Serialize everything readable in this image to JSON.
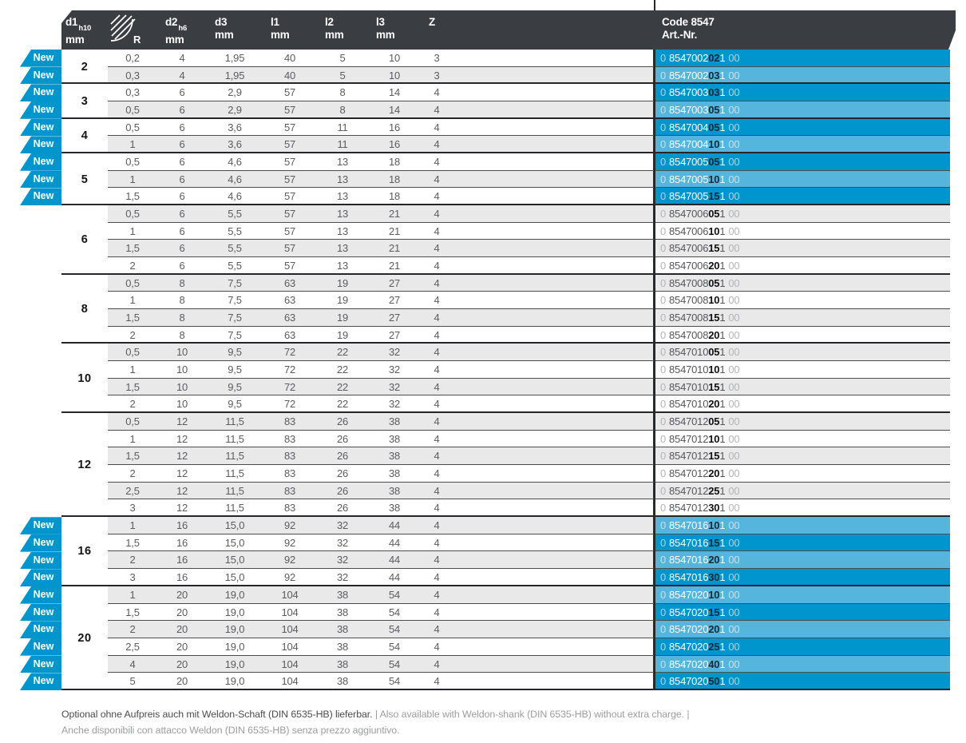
{
  "badge_label": "New",
  "header": {
    "columns": [
      {
        "main": "d1",
        "sub": "h10",
        "unit": "mm"
      },
      {
        "label": "R",
        "icon": "corner-radius-icon"
      },
      {
        "main": "d2",
        "sub": "h6",
        "unit": "mm"
      },
      {
        "main": "d3",
        "unit": "mm"
      },
      {
        "main": "l1",
        "unit": "mm"
      },
      {
        "main": "l2",
        "unit": "mm"
      },
      {
        "main": "l3",
        "unit": "mm"
      },
      {
        "main": "Z"
      }
    ],
    "art": {
      "line1": "Code 8547",
      "line2": "Art.-Nr."
    }
  },
  "groups": [
    {
      "d1": "2",
      "rows": [
        {
          "r": "0,2",
          "d2": "4",
          "d3": "1,95",
          "l1": "40",
          "l2": "5",
          "l3": "10",
          "z": "3",
          "new": true,
          "code": [
            "0",
            "8547002",
            "02",
            "1",
            "00"
          ]
        },
        {
          "r": "0,3",
          "d2": "4",
          "d3": "1,95",
          "l1": "40",
          "l2": "5",
          "l3": "10",
          "z": "3",
          "new": true,
          "code": [
            "0",
            "8547002",
            "03",
            "1",
            "00"
          ]
        }
      ]
    },
    {
      "d1": "3",
      "rows": [
        {
          "r": "0,3",
          "d2": "6",
          "d3": "2,9",
          "l1": "57",
          "l2": "8",
          "l3": "14",
          "z": "4",
          "new": true,
          "code": [
            "0",
            "8547003",
            "03",
            "1",
            "00"
          ]
        },
        {
          "r": "0,5",
          "d2": "6",
          "d3": "2,9",
          "l1": "57",
          "l2": "8",
          "l3": "14",
          "z": "4",
          "new": true,
          "code": [
            "0",
            "8547003",
            "05",
            "1",
            "00"
          ]
        }
      ]
    },
    {
      "d1": "4",
      "rows": [
        {
          "r": "0,5",
          "d2": "6",
          "d3": "3,6",
          "l1": "57",
          "l2": "11",
          "l3": "16",
          "z": "4",
          "new": true,
          "code": [
            "0",
            "8547004",
            "05",
            "1",
            "00"
          ]
        },
        {
          "r": "1",
          "d2": "6",
          "d3": "3,6",
          "l1": "57",
          "l2": "11",
          "l3": "16",
          "z": "4",
          "new": true,
          "code": [
            "0",
            "8547004",
            "10",
            "1",
            "00"
          ]
        }
      ]
    },
    {
      "d1": "5",
      "rows": [
        {
          "r": "0,5",
          "d2": "6",
          "d3": "4,6",
          "l1": "57",
          "l2": "13",
          "l3": "18",
          "z": "4",
          "new": true,
          "code": [
            "0",
            "8547005",
            "05",
            "1",
            "00"
          ]
        },
        {
          "r": "1",
          "d2": "6",
          "d3": "4,6",
          "l1": "57",
          "l2": "13",
          "l3": "18",
          "z": "4",
          "new": true,
          "code": [
            "0",
            "8547005",
            "10",
            "1",
            "00"
          ]
        },
        {
          "r": "1,5",
          "d2": "6",
          "d3": "4,6",
          "l1": "57",
          "l2": "13",
          "l3": "18",
          "z": "4",
          "new": true,
          "code": [
            "0",
            "8547005",
            "15",
            "1",
            "00"
          ]
        }
      ]
    },
    {
      "d1": "6",
      "rows": [
        {
          "r": "0,5",
          "d2": "6",
          "d3": "5,5",
          "l1": "57",
          "l2": "13",
          "l3": "21",
          "z": "4",
          "new": false,
          "code": [
            "0",
            "8547006",
            "05",
            "1",
            "00"
          ]
        },
        {
          "r": "1",
          "d2": "6",
          "d3": "5,5",
          "l1": "57",
          "l2": "13",
          "l3": "21",
          "z": "4",
          "new": false,
          "code": [
            "0",
            "8547006",
            "10",
            "1",
            "00"
          ]
        },
        {
          "r": "1,5",
          "d2": "6",
          "d3": "5,5",
          "l1": "57",
          "l2": "13",
          "l3": "21",
          "z": "4",
          "new": false,
          "code": [
            "0",
            "8547006",
            "15",
            "1",
            "00"
          ]
        },
        {
          "r": "2",
          "d2": "6",
          "d3": "5,5",
          "l1": "57",
          "l2": "13",
          "l3": "21",
          "z": "4",
          "new": false,
          "code": [
            "0",
            "8547006",
            "20",
            "1",
            "00"
          ]
        }
      ]
    },
    {
      "d1": "8",
      "rows": [
        {
          "r": "0,5",
          "d2": "8",
          "d3": "7,5",
          "l1": "63",
          "l2": "19",
          "l3": "27",
          "z": "4",
          "new": false,
          "code": [
            "0",
            "8547008",
            "05",
            "1",
            "00"
          ]
        },
        {
          "r": "1",
          "d2": "8",
          "d3": "7,5",
          "l1": "63",
          "l2": "19",
          "l3": "27",
          "z": "4",
          "new": false,
          "code": [
            "0",
            "8547008",
            "10",
            "1",
            "00"
          ]
        },
        {
          "r": "1,5",
          "d2": "8",
          "d3": "7,5",
          "l1": "63",
          "l2": "19",
          "l3": "27",
          "z": "4",
          "new": false,
          "code": [
            "0",
            "8547008",
            "15",
            "1",
            "00"
          ]
        },
        {
          "r": "2",
          "d2": "8",
          "d3": "7,5",
          "l1": "63",
          "l2": "19",
          "l3": "27",
          "z": "4",
          "new": false,
          "code": [
            "0",
            "8547008",
            "20",
            "1",
            "00"
          ]
        }
      ]
    },
    {
      "d1": "10",
      "rows": [
        {
          "r": "0,5",
          "d2": "10",
          "d3": "9,5",
          "l1": "72",
          "l2": "22",
          "l3": "32",
          "z": "4",
          "new": false,
          "code": [
            "0",
            "8547010",
            "05",
            "1",
            "00"
          ]
        },
        {
          "r": "1",
          "d2": "10",
          "d3": "9,5",
          "l1": "72",
          "l2": "22",
          "l3": "32",
          "z": "4",
          "new": false,
          "code": [
            "0",
            "8547010",
            "10",
            "1",
            "00"
          ]
        },
        {
          "r": "1,5",
          "d2": "10",
          "d3": "9,5",
          "l1": "72",
          "l2": "22",
          "l3": "32",
          "z": "4",
          "new": false,
          "code": [
            "0",
            "8547010",
            "15",
            "1",
            "00"
          ]
        },
        {
          "r": "2",
          "d2": "10",
          "d3": "9,5",
          "l1": "72",
          "l2": "22",
          "l3": "32",
          "z": "4",
          "new": false,
          "code": [
            "0",
            "8547010",
            "20",
            "1",
            "00"
          ]
        }
      ]
    },
    {
      "d1": "12",
      "rows": [
        {
          "r": "0,5",
          "d2": "12",
          "d3": "11,5",
          "l1": "83",
          "l2": "26",
          "l3": "38",
          "z": "4",
          "new": false,
          "code": [
            "0",
            "8547012",
            "05",
            "1",
            "00"
          ]
        },
        {
          "r": "1",
          "d2": "12",
          "d3": "11,5",
          "l1": "83",
          "l2": "26",
          "l3": "38",
          "z": "4",
          "new": false,
          "code": [
            "0",
            "8547012",
            "10",
            "1",
            "00"
          ]
        },
        {
          "r": "1,5",
          "d2": "12",
          "d3": "11,5",
          "l1": "83",
          "l2": "26",
          "l3": "38",
          "z": "4",
          "new": false,
          "code": [
            "0",
            "8547012",
            "15",
            "1",
            "00"
          ]
        },
        {
          "r": "2",
          "d2": "12",
          "d3": "11,5",
          "l1": "83",
          "l2": "26",
          "l3": "38",
          "z": "4",
          "new": false,
          "code": [
            "0",
            "8547012",
            "20",
            "1",
            "00"
          ]
        },
        {
          "r": "2,5",
          "d2": "12",
          "d3": "11,5",
          "l1": "83",
          "l2": "26",
          "l3": "38",
          "z": "4",
          "new": false,
          "code": [
            "0",
            "8547012",
            "25",
            "1",
            "00"
          ]
        },
        {
          "r": "3",
          "d2": "12",
          "d3": "11,5",
          "l1": "83",
          "l2": "26",
          "l3": "38",
          "z": "4",
          "new": false,
          "code": [
            "0",
            "8547012",
            "30",
            "1",
            "00"
          ]
        }
      ]
    },
    {
      "d1": "16",
      "rows": [
        {
          "r": "1",
          "d2": "16",
          "d3": "15,0",
          "l1": "92",
          "l2": "32",
          "l3": "44",
          "z": "4",
          "new": true,
          "code": [
            "0",
            "8547016",
            "10",
            "1",
            "00"
          ]
        },
        {
          "r": "1,5",
          "d2": "16",
          "d3": "15,0",
          "l1": "92",
          "l2": "32",
          "l3": "44",
          "z": "4",
          "new": true,
          "code": [
            "0",
            "8547016",
            "15",
            "1",
            "00"
          ]
        },
        {
          "r": "2",
          "d2": "16",
          "d3": "15,0",
          "l1": "92",
          "l2": "32",
          "l3": "44",
          "z": "4",
          "new": true,
          "code": [
            "0",
            "8547016",
            "20",
            "1",
            "00"
          ]
        },
        {
          "r": "3",
          "d2": "16",
          "d3": "15,0",
          "l1": "92",
          "l2": "32",
          "l3": "44",
          "z": "4",
          "new": true,
          "code": [
            "0",
            "8547016",
            "30",
            "1",
            "00"
          ]
        }
      ]
    },
    {
      "d1": "20",
      "rows": [
        {
          "r": "1",
          "d2": "20",
          "d3": "19,0",
          "l1": "104",
          "l2": "38",
          "l3": "54",
          "z": "4",
          "new": true,
          "code": [
            "0",
            "8547020",
            "10",
            "1",
            "00"
          ]
        },
        {
          "r": "1,5",
          "d2": "20",
          "d3": "19,0",
          "l1": "104",
          "l2": "38",
          "l3": "54",
          "z": "4",
          "new": true,
          "code": [
            "0",
            "8547020",
            "15",
            "1",
            "00"
          ]
        },
        {
          "r": "2",
          "d2": "20",
          "d3": "19,0",
          "l1": "104",
          "l2": "38",
          "l3": "54",
          "z": "4",
          "new": true,
          "code": [
            "0",
            "8547020",
            "20",
            "1",
            "00"
          ]
        },
        {
          "r": "2,5",
          "d2": "20",
          "d3": "19,0",
          "l1": "104",
          "l2": "38",
          "l3": "54",
          "z": "4",
          "new": true,
          "code": [
            "0",
            "8547020",
            "25",
            "1",
            "00"
          ]
        },
        {
          "r": "4",
          "d2": "20",
          "d3": "19,0",
          "l1": "104",
          "l2": "38",
          "l3": "54",
          "z": "4",
          "new": true,
          "code": [
            "0",
            "8547020",
            "40",
            "1",
            "00"
          ]
        },
        {
          "r": "5",
          "d2": "20",
          "d3": "19,0",
          "l1": "104",
          "l2": "38",
          "l3": "54",
          "z": "4",
          "new": true,
          "code": [
            "0",
            "8547020",
            "50",
            "1",
            "00"
          ]
        }
      ]
    }
  ],
  "footer": {
    "lines": [
      [
        {
          "t": "Optional ohne Aufpreis auch mit Weldon-Schaft (DIN 6535-HB) lieferbar.",
          "tone": "dark"
        },
        {
          "t": " | ",
          "tone": "light"
        },
        {
          "t": "Also available with Weldon-shank (DIN 6535-HB) without extra charge. |",
          "tone": "light"
        }
      ],
      [
        {
          "t": "Anche disponibili con attacco Weldon (DIN 6535-HB) senza prezzo aggiuntivo.",
          "tone": "light"
        }
      ]
    ]
  },
  "colors": {
    "accent_dark_cyan": "#0095cd",
    "accent_light_cyan": "#55b5dd",
    "header_bg": "#3a3d42",
    "stripe_gray": "#e9e9ea"
  }
}
